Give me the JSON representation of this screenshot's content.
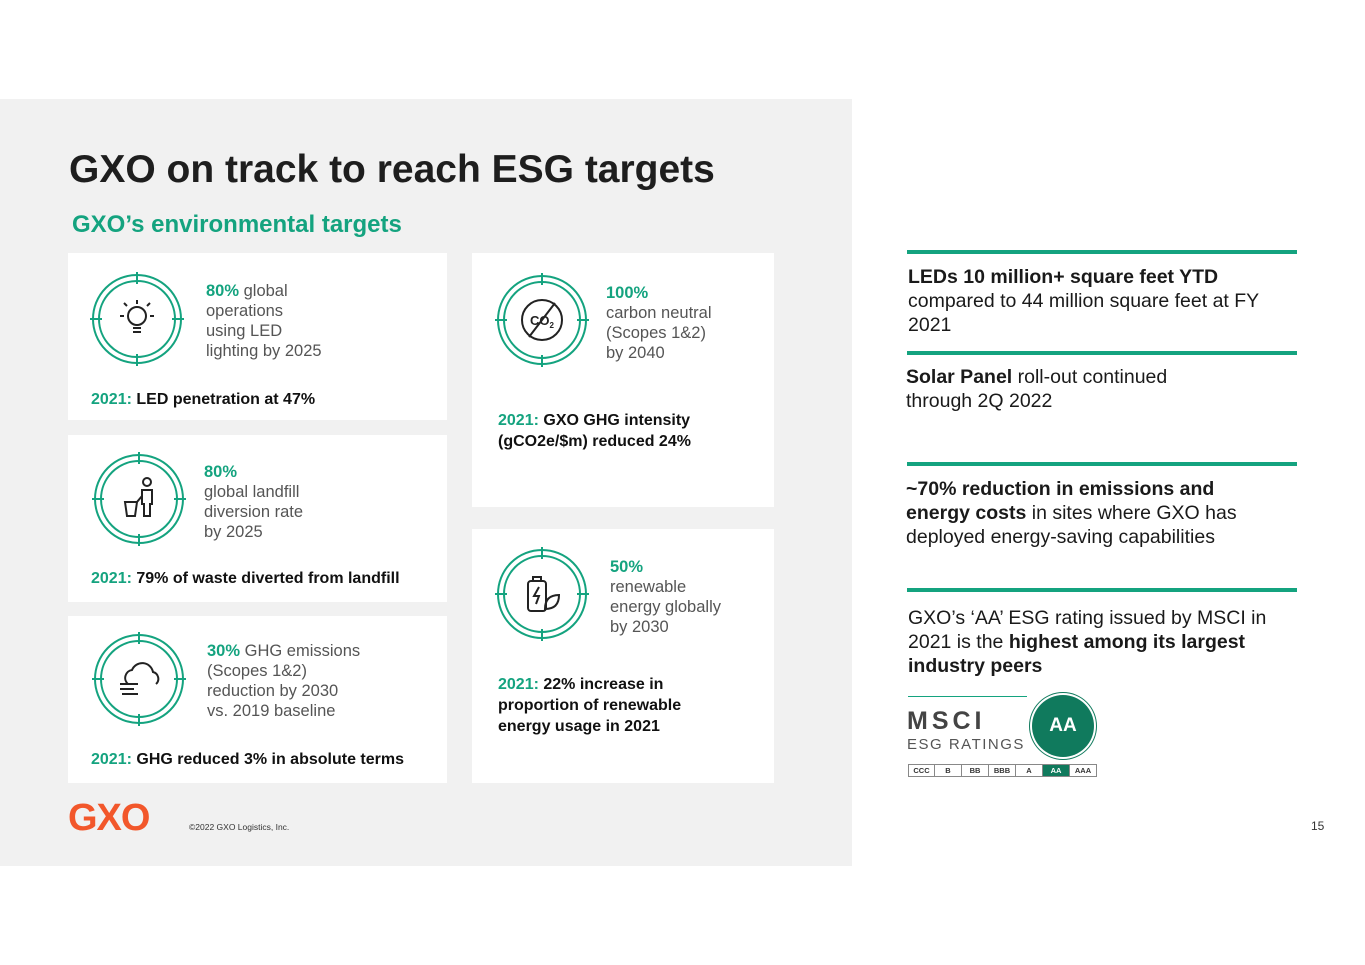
{
  "title": "GXO on track to reach ESG targets",
  "subtitle": "GXO’s environmental targets",
  "cards": {
    "led": {
      "icon": "lightbulb-icon",
      "pct": "80%",
      "line1_rest": " global",
      "lines": [
        "operations",
        "using LED",
        "lighting by 2025"
      ],
      "result_year": "2021:",
      "result_text": " LED penetration at 47%"
    },
    "landfill": {
      "icon": "recycle-person-icon",
      "pct": "80%",
      "lines": [
        "global landfill",
        "diversion rate",
        "by 2025"
      ],
      "result_year": "2021:",
      "result_text": " 79% of waste diverted from landfill"
    },
    "ghg": {
      "icon": "cloud-emissions-icon",
      "pct": "30%",
      "line1_rest": " GHG emissions",
      "lines": [
        "(Scopes 1&2)",
        "reduction by 2030",
        "vs. 2019 baseline"
      ],
      "result_year": "2021:",
      "result_text": " GHG reduced 3% in absolute terms"
    },
    "carbon": {
      "icon": "co2-crossed-icon",
      "co2_label": "CO",
      "co2_sub": "2",
      "pct": "100%",
      "lines": [
        "carbon neutral",
        "(Scopes 1&2)",
        "by 2040"
      ],
      "result_year": "2021:",
      "result_line1": " GXO GHG intensity",
      "result_line2": "(gCO2e/$m) reduced 24%"
    },
    "renewable": {
      "icon": "battery-leaf-icon",
      "pct": "50%",
      "lines": [
        "renewable",
        "energy globally",
        "by 2030"
      ],
      "result_year": "2021:",
      "result_line1": " 22% increase in",
      "result_line2": "proportion of renewable",
      "result_line3": "energy usage in 2021"
    }
  },
  "highlights": {
    "leds": {
      "bold": "LEDs 10 million+ square feet YTD",
      "line2": "compared to 44 million square feet at FY",
      "line3": "2021"
    },
    "solar": {
      "bold": "Solar Panel",
      "rest": " roll-out continued",
      "line2": "through 2Q 2022"
    },
    "emissions": {
      "bold1": "~70% reduction in emissions and",
      "bold2": "energy costs",
      "rest2": " in sites where GXO has",
      "line3": "deployed energy-saving capabilities"
    },
    "msci": {
      "line1": "GXO’s ‘AA’ ESG rating issued by MSCI in",
      "line2_plain": "2021 is the ",
      "line2_bold": "highest among its largest",
      "line3_bold": "industry peers"
    }
  },
  "msci_logo": {
    "word": "MSCI",
    "sub": "ESG RATINGS",
    "badge": "AA",
    "scale": [
      "CCC",
      "B",
      "BB",
      "BBB",
      "A",
      "AA",
      "AAA"
    ],
    "active": "AA"
  },
  "footer": {
    "logo": "GXO",
    "copyright": "©2022 GXO Logistics, Inc.",
    "page": "15"
  },
  "colors": {
    "accent": "#14a37f",
    "brand_orange": "#f2572b",
    "msci_green": "#107a5d",
    "panel_bg": "#f1f1f1"
  }
}
